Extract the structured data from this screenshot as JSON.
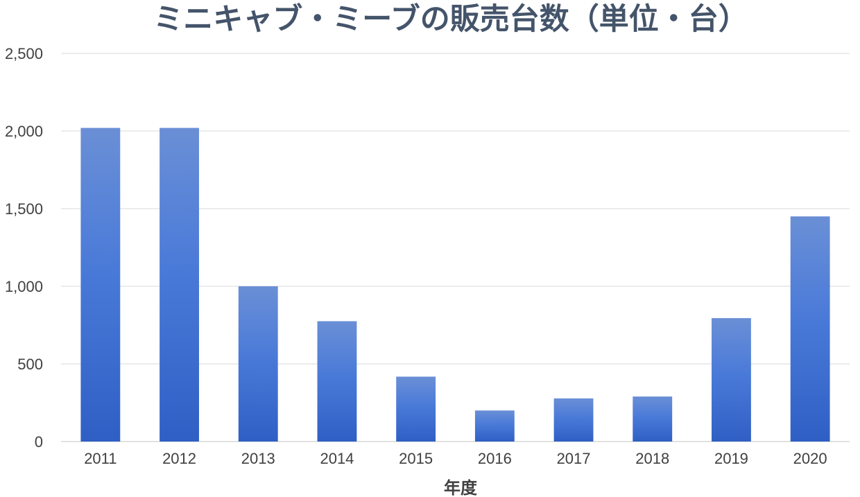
{
  "chart_data": {
    "type": "bar",
    "title": "ミニキャブ・ミーブの販売台数（単位・台）",
    "xlabel": "年度",
    "ylabel": "",
    "categories": [
      "2011",
      "2012",
      "2013",
      "2014",
      "2015",
      "2016",
      "2017",
      "2018",
      "2019",
      "2020"
    ],
    "series": [
      {
        "values": [
          2020,
          2020,
          1000,
          775,
          418,
          200,
          278,
          290,
          795,
          1450
        ]
      }
    ],
    "ylim": [
      0,
      2500
    ],
    "yticks": [
      0,
      500,
      1000,
      1500,
      2000,
      2500
    ],
    "ytick_labels": [
      "0",
      "500",
      "1,000",
      "1,500",
      "2,000",
      "2,500"
    ],
    "grid": true,
    "legend": "none",
    "bar_color_top": "#6a8fd6",
    "bar_color_bottom": "#2f5fc4"
  }
}
